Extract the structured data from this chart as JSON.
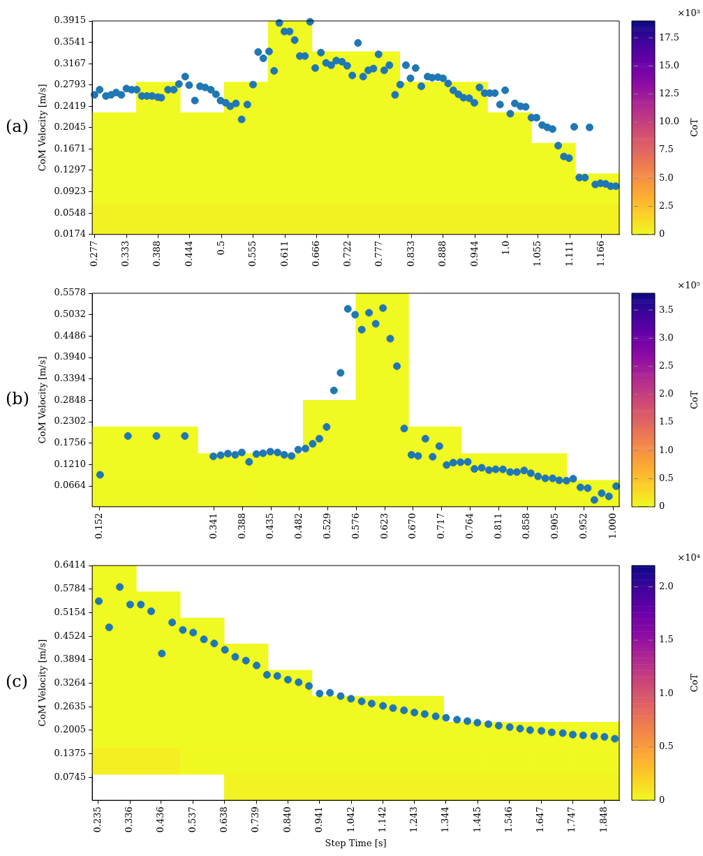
{
  "chart_data": [
    {
      "type": "heatmap",
      "ylabel": "CoM Velocity [m/s]",
      "clabel": "CoT",
      "annotations": [
        "(a)",
        "×10³"
      ],
      "xlim": [
        0.273,
        1.197
      ],
      "xticks": [
        0.277,
        0.333,
        0.388,
        0.444,
        0.5,
        0.555,
        0.611,
        0.666,
        0.722,
        0.777,
        0.833,
        0.888,
        0.944,
        {
          "value": 1,
          "label": "1.0"
        },
        1.055,
        1.111,
        1.166
      ],
      "ylim": [
        0.0174,
        0.3915
      ],
      "yticks": [
        0.0174,
        0.0548,
        0.0923,
        0.1297,
        0.1671,
        0.2045,
        0.2419,
        0.2793,
        0.3167,
        0.3541,
        0.3915
      ],
      "grid": false,
      "marker": "circle",
      "cells": [
        [
          null,
          null,
          null,
          null,
          0.002,
          null,
          null,
          null,
          null,
          null,
          null,
          null
        ],
        [
          null,
          null,
          null,
          null,
          0.002,
          0.002,
          0.002,
          null,
          null,
          null,
          null,
          null
        ],
        [
          null,
          0.002,
          null,
          0.002,
          0.002,
          0.002,
          0.002,
          0.002,
          0.002,
          null,
          null,
          null
        ],
        [
          0.002,
          0.002,
          0.002,
          0.002,
          0.002,
          0.002,
          0.002,
          0.002,
          0.002,
          0.002,
          null,
          null
        ],
        [
          0.002,
          0.002,
          0.002,
          0.002,
          0.002,
          0.002,
          0.002,
          0.002,
          0.002,
          0.002,
          0.002,
          null
        ],
        [
          0.02,
          0.02,
          0.02,
          0.02,
          0.02,
          0.02,
          0.02,
          0.02,
          0.02,
          0.02,
          0.02,
          0.02
        ],
        [
          0.3,
          0.3,
          0.3,
          0.3,
          0.3,
          0.3,
          0.3,
          0.3,
          0.3,
          0.3,
          0.3,
          0.3
        ]
      ],
      "clim": [
        0,
        19
      ],
      "cticks": [
        0,
        2.5,
        {
          "value": 5,
          "label": "5.0"
        },
        7.5,
        {
          "value": 10,
          "label": "10.0"
        },
        12.5,
        {
          "value": 15,
          "label": "15.0"
        },
        17.5
      ],
      "series": [
        {
          "type": "scatter",
          "color": "#1f77b4",
          "x": [
            0.277,
            0.286,
            0.297,
            0.306,
            0.315,
            0.324,
            0.333,
            0.342,
            0.351,
            0.36,
            0.369,
            0.378,
            0.388,
            0.394,
            0.406,
            0.416,
            0.425,
            0.436,
            0.443,
            0.453,
            0.462,
            0.471,
            0.481,
            0.49,
            0.498,
            0.507,
            0.515,
            0.525,
            0.535,
            0.545,
            0.555,
            0.564,
            0.573,
            0.583,
            0.592,
            0.601,
            0.61,
            0.619,
            0.628,
            0.637,
            0.646,
            0.655,
            0.664,
            0.674,
            0.683,
            0.692,
            0.701,
            0.711,
            0.72,
            0.729,
            0.739,
            0.748,
            0.757,
            0.766,
            0.775,
            0.785,
            0.794,
            0.804,
            0.813,
            0.823,
            0.831,
            0.84,
            0.85,
            0.861,
            0.869,
            0.879,
            0.888,
            0.897,
            0.906,
            0.915,
            0.924,
            0.934,
            0.943,
            0.952,
            0.961,
            0.97,
            0.979,
            0.988,
            0.997,
            1.006,
            1.014,
            1.024,
            1.033,
            1.043,
            1.052,
            1.062,
            1.071,
            1.08,
            1.09,
            1.1,
            1.109,
            1.118,
            1.127,
            1.137,
            1.145,
            1.155,
            1.164,
            1.173,
            1.182,
            1.191
          ],
          "values": [
            0.262,
            0.271,
            0.26,
            0.262,
            0.266,
            0.262,
            0.273,
            0.271,
            0.271,
            0.26,
            0.26,
            0.26,
            0.258,
            0.257,
            0.271,
            0.271,
            0.281,
            0.294,
            0.279,
            0.252,
            0.277,
            0.275,
            0.271,
            0.263,
            0.252,
            0.248,
            0.242,
            0.247,
            0.219,
            0.245,
            0.28,
            0.337,
            0.326,
            0.338,
            0.304,
            0.388,
            0.373,
            0.373,
            0.358,
            0.33,
            0.33,
            0.39,
            0.309,
            0.336,
            0.318,
            0.314,
            0.322,
            0.32,
            0.313,
            0.296,
            0.353,
            0.294,
            0.305,
            0.308,
            0.333,
            0.305,
            0.314,
            0.262,
            0.28,
            0.314,
            0.291,
            0.309,
            0.277,
            0.294,
            0.292,
            0.293,
            0.291,
            0.282,
            0.27,
            0.263,
            0.257,
            0.256,
            0.248,
            0.275,
            0.265,
            0.265,
            0.265,
            0.245,
            0.27,
            0.229,
            0.247,
            0.242,
            0.241,
            0.222,
            0.222,
            0.209,
            0.205,
            0.202,
            0.173,
            0.154,
            0.151,
            0.206,
            0.117,
            0.117,
            0.205,
            0.105,
            0.107,
            0.106,
            0.102,
            0.102
          ]
        }
      ]
    },
    {
      "type": "heatmap",
      "ylabel": "CoM Velocity [m/s]",
      "clabel": "CoT",
      "annotations": [
        "(b)",
        "×10⁵"
      ],
      "xlim": [
        0.14,
        1.01
      ],
      "xticks": [
        0.152,
        0.341,
        0.388,
        0.435,
        0.482,
        0.529,
        0.576,
        0.623,
        {
          "value": 0.67,
          "label": "0.670"
        },
        0.717,
        0.764,
        0.811,
        0.858,
        0.905,
        0.952,
        {
          "value": 1,
          "label": "1.000"
        }
      ],
      "ylim": [
        0.0136,
        0.5578
      ],
      "yticks": [
        0.0664,
        {
          "value": 0.121,
          "label": "0.1210"
        },
        0.1756,
        0.2302,
        0.2848,
        0.3394,
        {
          "value": 0.394,
          "label": "0.3940"
        },
        0.4486,
        0.5032,
        0.5578
      ],
      "grid": false,
      "marker": "circle",
      "cells": [
        [
          null,
          null,
          null,
          null,
          null,
          0.0001,
          null,
          null,
          null,
          null
        ],
        [
          null,
          null,
          null,
          null,
          null,
          0.0001,
          null,
          null,
          null,
          null
        ],
        [
          null,
          null,
          null,
          null,
          null,
          0.0001,
          null,
          null,
          null,
          null
        ],
        [
          null,
          null,
          null,
          null,
          null,
          0.0001,
          null,
          null,
          null,
          null
        ],
        [
          null,
          null,
          null,
          null,
          0.0001,
          0.0001,
          null,
          null,
          null,
          null
        ],
        [
          0.0001,
          0.0001,
          null,
          null,
          0.0001,
          0.0001,
          0.0001,
          null,
          null,
          null
        ],
        [
          0.001,
          0.001,
          0.001,
          0.001,
          0.001,
          0.001,
          0.001,
          0.001,
          0.001,
          null
        ],
        [
          0.01,
          0.01,
          0.01,
          0.01,
          0.01,
          0.01,
          0.01,
          0.01,
          0.01,
          0.01
        ]
      ],
      "clim": [
        0,
        3.8
      ],
      "cticks": [
        0,
        0.5,
        {
          "value": 1,
          "label": "1.0"
        },
        1.5,
        {
          "value": 2,
          "label": "2.0"
        },
        2.5,
        {
          "value": 3,
          "label": "3.0"
        },
        3.5
      ],
      "series": [
        {
          "type": "scatter",
          "color": "#1f77b4",
          "x": [
            0.153,
            0.199,
            0.246,
            0.293,
            0.34,
            0.352,
            0.364,
            0.376,
            0.387,
            0.399,
            0.411,
            0.422,
            0.434,
            0.446,
            0.457,
            0.469,
            0.48,
            0.492,
            0.504,
            0.515,
            0.527,
            0.539,
            0.55,
            0.562,
            0.574,
            0.585,
            0.597,
            0.608,
            0.62,
            0.632,
            0.643,
            0.655,
            0.667,
            0.678,
            0.69,
            0.702,
            0.713,
            0.725,
            0.736,
            0.748,
            0.76,
            0.771,
            0.783,
            0.795,
            0.806,
            0.818,
            0.83,
            0.841,
            0.853,
            0.864,
            0.876,
            0.888,
            0.9,
            0.911,
            0.923,
            0.934,
            0.946,
            0.958,
            0.969,
            0.981,
            0.993,
            1.005
          ],
          "values": [
            0.095,
            0.194,
            0.194,
            0.194,
            0.142,
            0.145,
            0.149,
            0.146,
            0.152,
            0.128,
            0.148,
            0.15,
            0.154,
            0.152,
            0.146,
            0.143,
            0.159,
            0.162,
            0.174,
            0.187,
            0.217,
            0.31,
            0.355,
            0.518,
            0.503,
            0.465,
            0.508,
            0.48,
            0.52,
            0.442,
            0.372,
            0.213,
            0.146,
            0.143,
            0.187,
            0.141,
            0.168,
            0.12,
            0.126,
            0.127,
            0.128,
            0.11,
            0.113,
            0.107,
            0.109,
            0.109,
            0.102,
            0.102,
            0.106,
            0.099,
            0.091,
            0.086,
            0.086,
            0.081,
            0.08,
            0.085,
            0.063,
            0.061,
            0.031,
            0.048,
            0.04,
            0.066
          ]
        }
      ]
    },
    {
      "type": "heatmap",
      "xlabel": "Step Time [s]",
      "ylabel": "CoM Velocity [m/s]",
      "clabel": "CoT",
      "annotations": [
        "(c)",
        "×10⁴"
      ],
      "xlim": [
        0.216,
        1.896
      ],
      "xticks": [
        0.235,
        0.336,
        0.436,
        0.537,
        0.638,
        0.739,
        {
          "value": 0.84,
          "label": "0.840"
        },
        0.941,
        1.042,
        1.142,
        1.243,
        1.344,
        1.445,
        1.546,
        1.647,
        1.747,
        1.848
      ],
      "ylim": [
        0.0133,
        0.6414
      ],
      "yticks": [
        0.0745,
        0.1375,
        0.2005,
        0.2635,
        0.3264,
        0.3894,
        0.4524,
        0.5154,
        0.5784,
        0.6414
      ],
      "grid": false,
      "marker": "circle",
      "cells": [
        [
          0.001,
          null,
          null,
          null,
          null,
          null,
          null,
          null,
          null,
          null,
          null,
          null
        ],
        [
          0.001,
          0.001,
          null,
          null,
          null,
          null,
          null,
          null,
          null,
          null,
          null,
          null
        ],
        [
          0.001,
          0.001,
          0.001,
          null,
          null,
          null,
          null,
          null,
          null,
          null,
          null,
          null
        ],
        [
          0.001,
          0.001,
          0.001,
          0.001,
          null,
          null,
          null,
          null,
          null,
          null,
          null,
          null
        ],
        [
          0.001,
          0.001,
          0.001,
          0.001,
          0.001,
          null,
          null,
          null,
          null,
          null,
          null,
          null
        ],
        [
          0.001,
          0.001,
          0.001,
          0.001,
          0.001,
          0.001,
          0.001,
          0.001,
          null,
          null,
          null,
          null
        ],
        [
          0.001,
          0.001,
          0.001,
          0.001,
          0.001,
          0.001,
          0.001,
          0.001,
          0.001,
          0.001,
          0.001,
          0.001
        ],
        [
          0.05,
          0.05,
          0.005,
          0.005,
          0.005,
          0.005,
          0.005,
          0.005,
          0.005,
          0.005,
          0.005,
          0.005
        ],
        [
          null,
          null,
          null,
          0.03,
          0.03,
          0.03,
          0.03,
          0.03,
          0.03,
          0.03,
          0.03,
          0.03
        ]
      ],
      "clim": [
        0,
        2.2
      ],
      "cticks": [
        0,
        0.5,
        {
          "value": 1,
          "label": "1.0"
        },
        1.5,
        {
          "value": 2,
          "label": "2.0"
        }
      ],
      "series": [
        {
          "type": "scatter",
          "color": "#1f77b4",
          "x": [
            0.237,
            0.27,
            0.304,
            0.337,
            0.371,
            0.404,
            0.438,
            0.471,
            0.505,
            0.538,
            0.572,
            0.605,
            0.639,
            0.672,
            0.706,
            0.74,
            0.773,
            0.806,
            0.84,
            0.874,
            0.907,
            0.941,
            0.974,
            1.008,
            1.041,
            1.075,
            1.107,
            1.143,
            1.175,
            1.21,
            1.243,
            1.276,
            1.311,
            1.344,
            1.379,
            1.412,
            1.444,
            1.479,
            1.512,
            1.547,
            1.58,
            1.612,
            1.648,
            1.681,
            1.716,
            1.748,
            1.781,
            1.816,
            1.849,
            1.882
          ],
          "values": [
            0.546,
            0.476,
            0.584,
            0.537,
            0.537,
            0.519,
            0.406,
            0.489,
            0.469,
            0.462,
            0.444,
            0.433,
            0.416,
            0.397,
            0.387,
            0.374,
            0.349,
            0.346,
            0.336,
            0.329,
            0.319,
            0.299,
            0.301,
            0.292,
            0.285,
            0.278,
            0.272,
            0.266,
            0.26,
            0.254,
            0.248,
            0.244,
            0.238,
            0.234,
            0.229,
            0.225,
            0.221,
            0.217,
            0.213,
            0.209,
            0.205,
            0.201,
            0.199,
            0.195,
            0.193,
            0.189,
            0.187,
            0.185,
            0.183,
            0.178
          ]
        }
      ]
    }
  ]
}
